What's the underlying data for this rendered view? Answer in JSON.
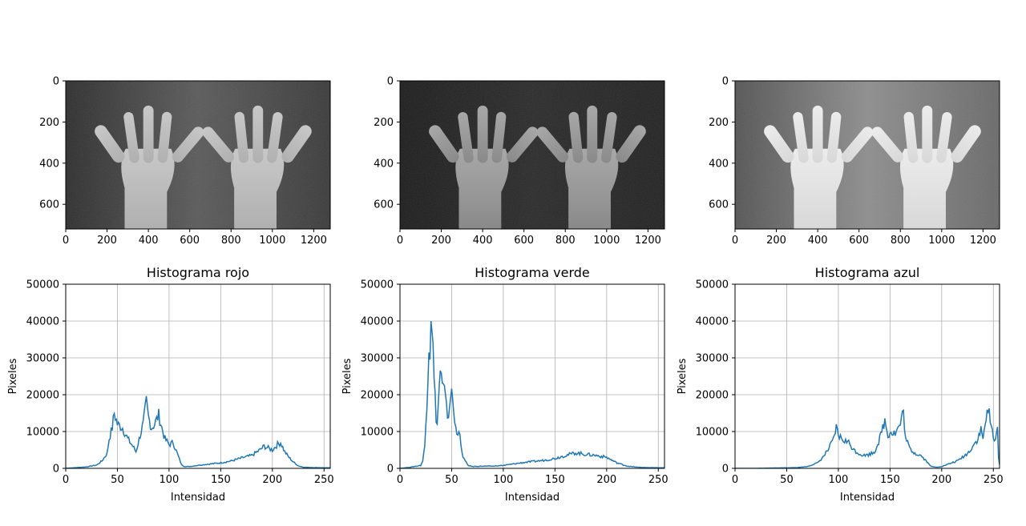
{
  "chart_data": [
    {
      "type": "image",
      "channel": "red",
      "title": "",
      "xticks": [
        0,
        200,
        400,
        600,
        800,
        1000,
        1200
      ],
      "yticks": [
        0,
        200,
        400,
        600
      ],
      "xlim": [
        0,
        1280
      ],
      "ylim": [
        720,
        0
      ]
    },
    {
      "type": "image",
      "channel": "green",
      "title": "",
      "xticks": [
        0,
        200,
        400,
        600,
        800,
        1000,
        1200
      ],
      "yticks": [
        0,
        200,
        400,
        600
      ],
      "xlim": [
        0,
        1280
      ],
      "ylim": [
        720,
        0
      ]
    },
    {
      "type": "image",
      "channel": "blue",
      "title": "",
      "xticks": [
        0,
        200,
        400,
        600,
        800,
        1000,
        1200
      ],
      "yticks": [
        0,
        200,
        400,
        600
      ],
      "xlim": [
        0,
        1280
      ],
      "ylim": [
        720,
        0
      ]
    },
    {
      "type": "line",
      "title": "Histograma rojo",
      "xlabel": "Intensidad",
      "ylabel": "Pixeles",
      "xlim": [
        0,
        256
      ],
      "ylim": [
        0,
        50000
      ],
      "xticks": [
        0,
        50,
        100,
        150,
        200,
        250
      ],
      "yticks": [
        0,
        10000,
        20000,
        30000,
        40000,
        50000
      ],
      "grid": true,
      "color": "#1f77b4",
      "points": [
        [
          0,
          0
        ],
        [
          10,
          200
        ],
        [
          20,
          400
        ],
        [
          30,
          900
        ],
        [
          35,
          2000
        ],
        [
          40,
          4000
        ],
        [
          42,
          8000
        ],
        [
          45,
          11000
        ],
        [
          47,
          15000
        ],
        [
          50,
          12000
        ],
        [
          55,
          11000
        ],
        [
          60,
          8000
        ],
        [
          65,
          6000
        ],
        [
          68,
          4500
        ],
        [
          72,
          9000
        ],
        [
          75,
          12000
        ],
        [
          78,
          18000
        ],
        [
          80,
          14000
        ],
        [
          83,
          11000
        ],
        [
          86,
          12000
        ],
        [
          90,
          14500
        ],
        [
          93,
          11000
        ],
        [
          96,
          8000
        ],
        [
          100,
          6500
        ],
        [
          104,
          7000
        ],
        [
          108,
          4000
        ],
        [
          112,
          1000
        ],
        [
          115,
          500
        ],
        [
          120,
          500
        ],
        [
          130,
          900
        ],
        [
          140,
          1200
        ],
        [
          150,
          1500
        ],
        [
          160,
          2000
        ],
        [
          170,
          2800
        ],
        [
          180,
          3500
        ],
        [
          188,
          5000
        ],
        [
          192,
          6000
        ],
        [
          196,
          5500
        ],
        [
          200,
          5000
        ],
        [
          205,
          6500
        ],
        [
          208,
          7000
        ],
        [
          212,
          4500
        ],
        [
          216,
          3000
        ],
        [
          220,
          1800
        ],
        [
          225,
          700
        ],
        [
          230,
          300
        ],
        [
          240,
          200
        ],
        [
          256,
          150
        ]
      ]
    },
    {
      "type": "line",
      "title": "Histograma verde",
      "xlabel": "Intensidad",
      "ylabel": "Pixeles",
      "xlim": [
        0,
        256
      ],
      "ylim": [
        0,
        50000
      ],
      "xticks": [
        0,
        50,
        100,
        150,
        200,
        250
      ],
      "yticks": [
        0,
        10000,
        20000,
        30000,
        40000,
        50000
      ],
      "grid": true,
      "color": "#1f77b4",
      "points": [
        [
          0,
          0
        ],
        [
          10,
          300
        ],
        [
          20,
          800
        ],
        [
          22,
          2000
        ],
        [
          24,
          6000
        ],
        [
          26,
          18000
        ],
        [
          28,
          34000
        ],
        [
          29,
          32000
        ],
        [
          30,
          43000
        ],
        [
          31,
          40000
        ],
        [
          33,
          24000
        ],
        [
          35,
          14000
        ],
        [
          36,
          12000
        ],
        [
          38,
          22000
        ],
        [
          39,
          27000
        ],
        [
          41,
          22000
        ],
        [
          43,
          21000
        ],
        [
          45,
          16000
        ],
        [
          47,
          14000
        ],
        [
          49,
          20500
        ],
        [
          51,
          19000
        ],
        [
          53,
          12000
        ],
        [
          55,
          10000
        ],
        [
          57,
          10500
        ],
        [
          60,
          4000
        ],
        [
          63,
          2000
        ],
        [
          66,
          800
        ],
        [
          70,
          500
        ],
        [
          80,
          600
        ],
        [
          90,
          600
        ],
        [
          100,
          800
        ],
        [
          110,
          1200
        ],
        [
          120,
          1600
        ],
        [
          130,
          1900
        ],
        [
          140,
          2200
        ],
        [
          150,
          2700
        ],
        [
          160,
          3500
        ],
        [
          170,
          4200
        ],
        [
          180,
          3800
        ],
        [
          190,
          3500
        ],
        [
          200,
          3000
        ],
        [
          205,
          2200
        ],
        [
          210,
          1500
        ],
        [
          220,
          600
        ],
        [
          230,
          300
        ],
        [
          240,
          200
        ],
        [
          256,
          150
        ]
      ]
    },
    {
      "type": "line",
      "title": "Histograma azul",
      "xlabel": "Intensidad",
      "ylabel": "Pixeles",
      "xlim": [
        0,
        256
      ],
      "ylim": [
        0,
        50000
      ],
      "xticks": [
        0,
        50,
        100,
        150,
        200,
        250
      ],
      "yticks": [
        0,
        10000,
        20000,
        30000,
        40000,
        50000
      ],
      "grid": true,
      "color": "#1f77b4",
      "points": [
        [
          0,
          0
        ],
        [
          20,
          0
        ],
        [
          40,
          100
        ],
        [
          60,
          200
        ],
        [
          70,
          500
        ],
        [
          80,
          1500
        ],
        [
          85,
          3000
        ],
        [
          90,
          5000
        ],
        [
          95,
          7500
        ],
        [
          98,
          11000
        ],
        [
          100,
          9000
        ],
        [
          103,
          8000
        ],
        [
          106,
          7500
        ],
        [
          110,
          7000
        ],
        [
          115,
          5000
        ],
        [
          120,
          4000
        ],
        [
          125,
          3500
        ],
        [
          130,
          3800
        ],
        [
          135,
          4500
        ],
        [
          140,
          8000
        ],
        [
          143,
          11000
        ],
        [
          145,
          13000
        ],
        [
          148,
          9000
        ],
        [
          150,
          10000
        ],
        [
          155,
          9500
        ],
        [
          158,
          11000
        ],
        [
          160,
          12000
        ],
        [
          163,
          15500
        ],
        [
          165,
          8000
        ],
        [
          170,
          5000
        ],
        [
          175,
          4000
        ],
        [
          180,
          3500
        ],
        [
          185,
          2000
        ],
        [
          190,
          500
        ],
        [
          195,
          300
        ],
        [
          200,
          500
        ],
        [
          205,
          1000
        ],
        [
          210,
          1500
        ],
        [
          215,
          2000
        ],
        [
          220,
          3000
        ],
        [
          225,
          4000
        ],
        [
          230,
          6000
        ],
        [
          235,
          8000
        ],
        [
          238,
          10500
        ],
        [
          240,
          8000
        ],
        [
          243,
          14000
        ],
        [
          246,
          15000
        ],
        [
          248,
          11000
        ],
        [
          250,
          9000
        ],
        [
          252,
          8000
        ],
        [
          254,
          10000
        ],
        [
          255,
          3000
        ],
        [
          256,
          1000
        ]
      ]
    }
  ]
}
